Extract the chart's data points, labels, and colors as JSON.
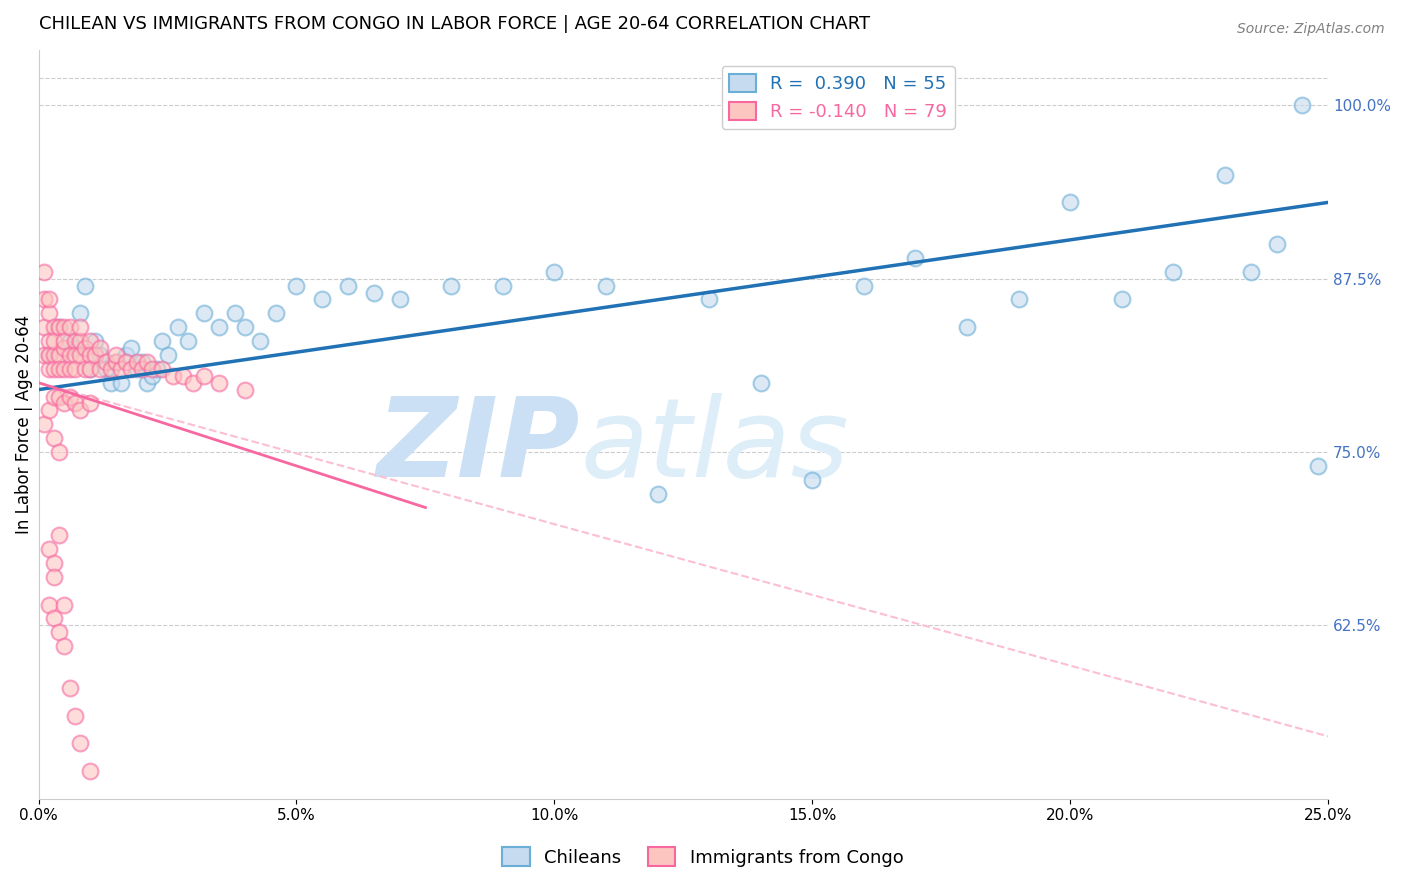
{
  "title": "CHILEAN VS IMMIGRANTS FROM CONGO IN LABOR FORCE | AGE 20-64 CORRELATION CHART",
  "source": "Source: ZipAtlas.com",
  "ylabel": "In Labor Force | Age 20-64",
  "legend_entries": [
    {
      "label": "R =  0.390   N = 55"
    },
    {
      "label": "R = -0.140   N = 79"
    }
  ],
  "legend_labels": [
    "Chileans",
    "Immigrants from Congo"
  ],
  "xlim": [
    0.0,
    0.25
  ],
  "ylim": [
    0.5,
    1.04
  ],
  "right_yticks": [
    0.625,
    0.75,
    0.875,
    1.0
  ],
  "right_yticklabels": [
    "62.5%",
    "75.0%",
    "87.5%",
    "100.0%"
  ],
  "xticks": [
    0.0,
    0.05,
    0.1,
    0.15,
    0.2,
    0.25
  ],
  "xticklabels": [
    "0.0%",
    "5.0%",
    "10.0%",
    "15.0%",
    "20.0%",
    "25.0%"
  ],
  "blue_scatter_x": [
    0.002,
    0.004,
    0.006,
    0.007,
    0.008,
    0.009,
    0.01,
    0.011,
    0.012,
    0.013,
    0.014,
    0.015,
    0.016,
    0.017,
    0.018,
    0.019,
    0.02,
    0.021,
    0.022,
    0.023,
    0.024,
    0.025,
    0.027,
    0.029,
    0.032,
    0.035,
    0.038,
    0.04,
    0.043,
    0.046,
    0.05,
    0.055,
    0.06,
    0.065,
    0.07,
    0.08,
    0.09,
    0.1,
    0.11,
    0.12,
    0.13,
    0.14,
    0.15,
    0.16,
    0.17,
    0.18,
    0.19,
    0.2,
    0.21,
    0.22,
    0.23,
    0.235,
    0.24,
    0.245,
    0.248
  ],
  "blue_scatter_y": [
    0.82,
    0.84,
    0.83,
    0.825,
    0.85,
    0.87,
    0.81,
    0.83,
    0.82,
    0.81,
    0.8,
    0.815,
    0.8,
    0.82,
    0.825,
    0.81,
    0.815,
    0.8,
    0.805,
    0.81,
    0.83,
    0.82,
    0.84,
    0.83,
    0.85,
    0.84,
    0.85,
    0.84,
    0.83,
    0.85,
    0.87,
    0.86,
    0.87,
    0.865,
    0.86,
    0.87,
    0.87,
    0.88,
    0.87,
    0.72,
    0.86,
    0.8,
    0.73,
    0.87,
    0.89,
    0.84,
    0.86,
    0.93,
    0.86,
    0.88,
    0.95,
    0.88,
    0.9,
    1.0,
    0.74
  ],
  "pink_scatter_x": [
    0.001,
    0.001,
    0.001,
    0.001,
    0.002,
    0.002,
    0.002,
    0.002,
    0.002,
    0.003,
    0.003,
    0.003,
    0.003,
    0.004,
    0.004,
    0.004,
    0.005,
    0.005,
    0.005,
    0.005,
    0.006,
    0.006,
    0.006,
    0.007,
    0.007,
    0.007,
    0.008,
    0.008,
    0.008,
    0.009,
    0.009,
    0.01,
    0.01,
    0.01,
    0.011,
    0.012,
    0.012,
    0.013,
    0.014,
    0.015,
    0.015,
    0.016,
    0.017,
    0.018,
    0.019,
    0.02,
    0.021,
    0.022,
    0.024,
    0.026,
    0.028,
    0.03,
    0.032,
    0.035,
    0.04,
    0.001,
    0.002,
    0.003,
    0.003,
    0.004,
    0.004,
    0.005,
    0.006,
    0.007,
    0.008,
    0.01,
    0.002,
    0.003,
    0.004,
    0.005,
    0.002,
    0.003,
    0.003,
    0.004,
    0.005,
    0.006,
    0.007,
    0.008,
    0.01
  ],
  "pink_scatter_y": [
    0.82,
    0.84,
    0.86,
    0.88,
    0.81,
    0.83,
    0.85,
    0.82,
    0.86,
    0.82,
    0.84,
    0.81,
    0.83,
    0.82,
    0.84,
    0.81,
    0.825,
    0.84,
    0.81,
    0.83,
    0.82,
    0.84,
    0.81,
    0.83,
    0.82,
    0.81,
    0.83,
    0.82,
    0.84,
    0.825,
    0.81,
    0.83,
    0.82,
    0.81,
    0.82,
    0.825,
    0.81,
    0.815,
    0.81,
    0.815,
    0.82,
    0.81,
    0.815,
    0.81,
    0.815,
    0.81,
    0.815,
    0.81,
    0.81,
    0.805,
    0.805,
    0.8,
    0.805,
    0.8,
    0.795,
    0.77,
    0.78,
    0.79,
    0.76,
    0.75,
    0.79,
    0.785,
    0.79,
    0.785,
    0.78,
    0.785,
    0.64,
    0.63,
    0.62,
    0.61,
    0.68,
    0.67,
    0.66,
    0.69,
    0.64,
    0.58,
    0.56,
    0.54,
    0.52
  ],
  "blue_line_x": [
    0.0,
    0.25
  ],
  "blue_line_y": [
    0.795,
    0.93
  ],
  "pink_solid_line_x": [
    0.0,
    0.075
  ],
  "pink_solid_line_y": [
    0.8,
    0.71
  ],
  "pink_dashed_line_x": [
    0.0,
    0.25
  ],
  "pink_dashed_line_y": [
    0.8,
    0.545
  ],
  "scatter_alpha": 0.6,
  "scatter_size": 130,
  "dot_edge_width": 1.5,
  "blue_color": "#6baed6",
  "blue_fill": "#c6dbef",
  "pink_color": "#f768a1",
  "pink_fill": "#fcc5c0",
  "blue_line_color": "#2171b5",
  "pink_solid_color": "#f768a1",
  "pink_dashed_color": "#fcbfd2",
  "grid_color": "#cccccc",
  "right_tick_color": "#4472c4",
  "watermark_zip": "ZIP",
  "watermark_atlas": "atlas",
  "watermark_color": "#cce0f5",
  "background_color": "#ffffff",
  "title_fontsize": 13,
  "axis_label_fontsize": 12,
  "tick_fontsize": 11,
  "legend_fontsize": 13
}
